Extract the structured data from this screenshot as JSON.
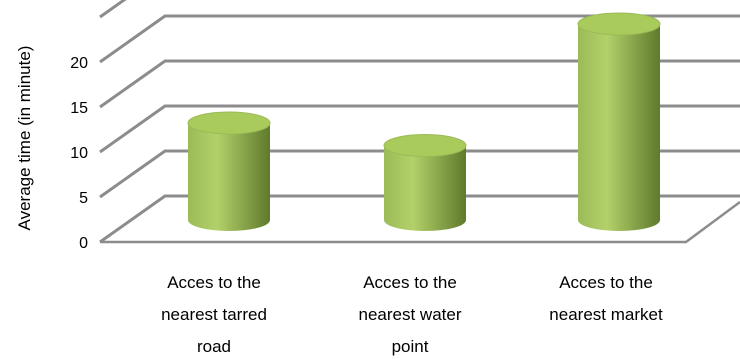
{
  "chart_data": {
    "type": "bar",
    "style": "3d-cylinder",
    "title": "",
    "xlabel": "",
    "ylabel": "Average time (in minute)",
    "ylim": [
      0,
      20
    ],
    "yticks": [
      0,
      5,
      10,
      15,
      20
    ],
    "grid": true,
    "legend": "none",
    "categories": [
      [
        "Acces to the",
        "nearest tarred",
        "road"
      ],
      [
        "Acces to the",
        "nearest water",
        "point"
      ],
      [
        "Acces to the",
        "nearest market"
      ]
    ],
    "values": [
      9,
      6.5,
      20
    ],
    "colors": {
      "bar_light": "#b3d16a",
      "bar_mid": "#9bbb59",
      "bar_dark": "#5f7a2c",
      "bar_top": "#a9cb5c",
      "gridline": "#8c8c8c"
    }
  }
}
